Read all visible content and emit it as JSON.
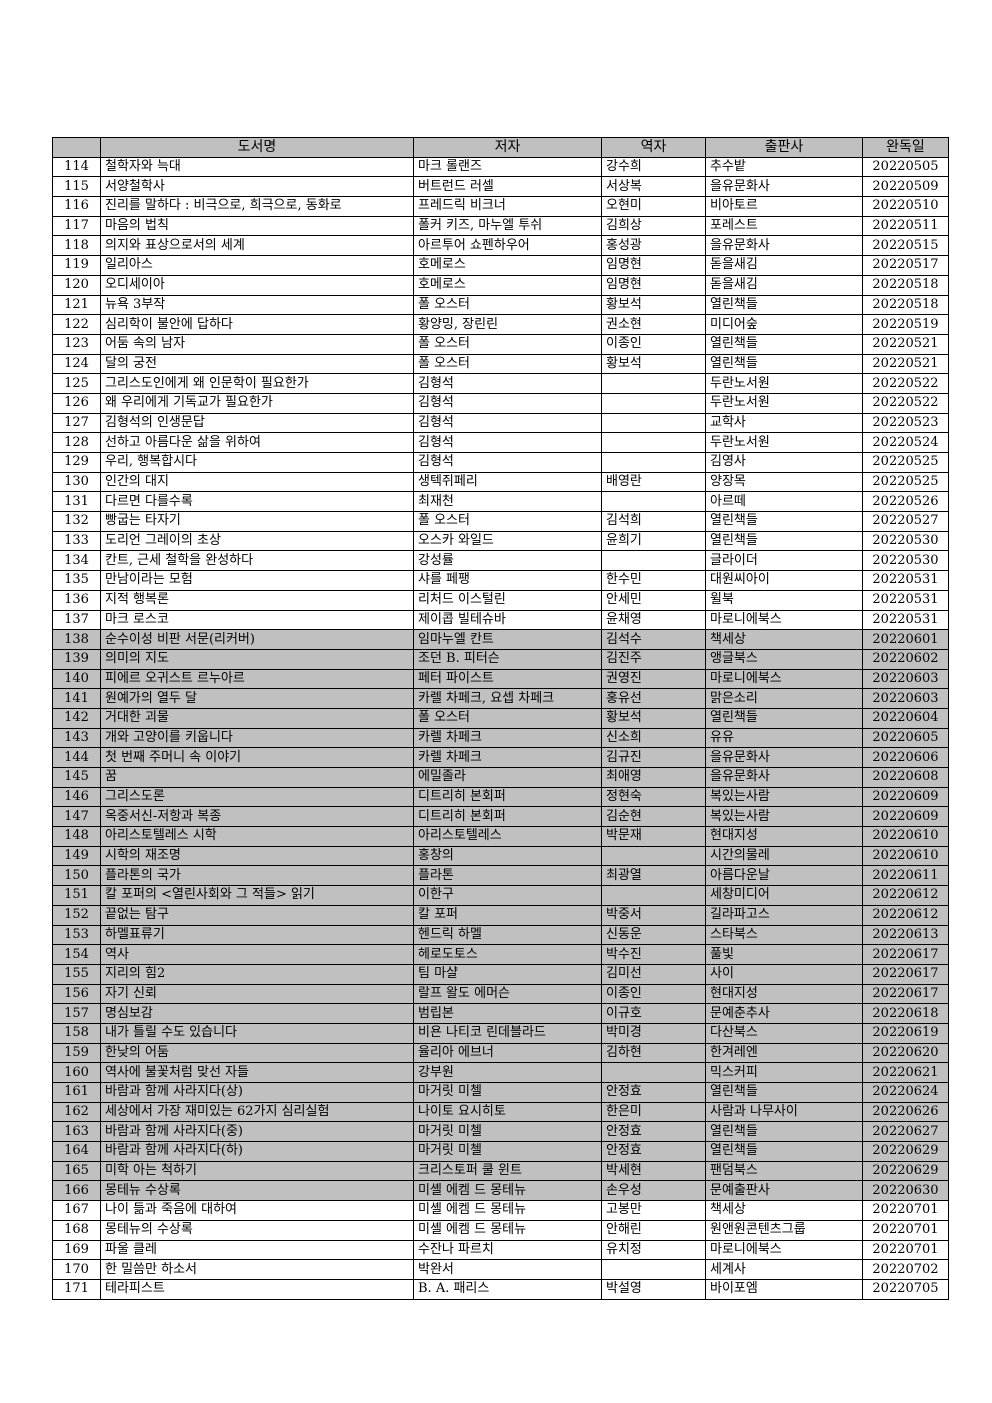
{
  "table": {
    "headers": [
      "",
      "도서명",
      "저자",
      "역자",
      "출판사",
      "완독일"
    ],
    "shade_color": "#c0c0c0",
    "rows": [
      {
        "no": "114",
        "title": "철학자와 늑대",
        "author": "마크 롤랜즈",
        "translator": "강수희",
        "publisher": "추수밭",
        "date": "20220505",
        "shaded": false
      },
      {
        "no": "115",
        "title": "서양철학사",
        "author": "버트런드 러셀",
        "translator": "서상복",
        "publisher": "을유문화사",
        "date": "20220509",
        "shaded": false
      },
      {
        "no": "116",
        "title": "진리를 말하다 : 비극으로, 희극으로, 동화로",
        "author": "프레드릭 비크너",
        "translator": "오현미",
        "publisher": "비아토르",
        "date": "20220510",
        "shaded": false
      },
      {
        "no": "117",
        "title": "마음의 법칙",
        "author": "폴커 키즈, 마누엘 투쉬",
        "translator": "김희상",
        "publisher": "포레스트",
        "date": "20220511",
        "shaded": false
      },
      {
        "no": "118",
        "title": "의지와 표상으로서의 세계",
        "author": "아르투어 쇼펜하우어",
        "translator": "홍성광",
        "publisher": "을유문화사",
        "date": "20220515",
        "shaded": false
      },
      {
        "no": "119",
        "title": "일리아스",
        "author": "호메로스",
        "translator": "임명현",
        "publisher": "돋을새김",
        "date": "20220517",
        "shaded": false
      },
      {
        "no": "120",
        "title": "오디세이아",
        "author": "호메로스",
        "translator": "임명현",
        "publisher": "돋을새김",
        "date": "20220518",
        "shaded": false
      },
      {
        "no": "121",
        "title": "뉴욕 3부작",
        "author": "폴 오스터",
        "translator": "황보석",
        "publisher": "열린책들",
        "date": "20220518",
        "shaded": false
      },
      {
        "no": "122",
        "title": "심리학이 불안에 답하다",
        "author": "황양밍, 장린린",
        "translator": "권소현",
        "publisher": "미디어숲",
        "date": "20220519",
        "shaded": false
      },
      {
        "no": "123",
        "title": "어둠 속의 남자",
        "author": "폴 오스터",
        "translator": "이종인",
        "publisher": "열린책들",
        "date": "20220521",
        "shaded": false
      },
      {
        "no": "124",
        "title": "달의 궁전",
        "author": "폴 오스터",
        "translator": "황보석",
        "publisher": "열린책들",
        "date": "20220521",
        "shaded": false
      },
      {
        "no": "125",
        "title": "그리스도인에게 왜 인문학이 필요한가",
        "author": "김형석",
        "translator": "",
        "publisher": "두란노서원",
        "date": "20220522",
        "shaded": false
      },
      {
        "no": "126",
        "title": "왜 우리에게 기독교가 필요한가",
        "author": "김형석",
        "translator": "",
        "publisher": "두란노서원",
        "date": "20220522",
        "shaded": false
      },
      {
        "no": "127",
        "title": "김형석의 인생문답",
        "author": "김형석",
        "translator": "",
        "publisher": "교학사",
        "date": "20220523",
        "shaded": false
      },
      {
        "no": "128",
        "title": "선하고 아름다운 삶을 위하여",
        "author": "김형석",
        "translator": "",
        "publisher": "두란노서원",
        "date": "20220524",
        "shaded": false
      },
      {
        "no": "129",
        "title": "우리, 행복합시다",
        "author": "김형석",
        "translator": "",
        "publisher": "김영사",
        "date": "20220525",
        "shaded": false
      },
      {
        "no": "130",
        "title": "인간의 대지",
        "author": "생텍쥐페리",
        "translator": "배영란",
        "publisher": "양장목",
        "date": "20220525",
        "shaded": false
      },
      {
        "no": "131",
        "title": "다르면 다를수록",
        "author": "최재천",
        "translator": "",
        "publisher": "아르떼",
        "date": "20220526",
        "shaded": false
      },
      {
        "no": "132",
        "title": "빵굽는 타자기",
        "author": "폴 오스터",
        "translator": "김석희",
        "publisher": "열린책들",
        "date": "20220527",
        "shaded": false
      },
      {
        "no": "133",
        "title": "도리언 그레이의 초상",
        "author": "오스카 와일드",
        "translator": "윤희기",
        "publisher": "열린책들",
        "date": "20220530",
        "shaded": false
      },
      {
        "no": "134",
        "title": "칸트, 근세 철학을 완성하다",
        "author": "강성률",
        "translator": "",
        "publisher": "글라이더",
        "date": "20220530",
        "shaded": false
      },
      {
        "no": "135",
        "title": "만남이라는 모험",
        "author": "샤를 페팽",
        "translator": "한수민",
        "publisher": "대원씨아이",
        "date": "20220531",
        "shaded": false
      },
      {
        "no": "136",
        "title": "지적 행복론",
        "author": "리처드 이스털린",
        "translator": "안세민",
        "publisher": "윌북",
        "date": "20220531",
        "shaded": false
      },
      {
        "no": "137",
        "title": "마크 로스코",
        "author": "제이콥 빌테슈바",
        "translator": "윤채영",
        "publisher": "마로니에북스",
        "date": "20220531",
        "shaded": false
      },
      {
        "no": "138",
        "title": "순수이성 비판 서문(리커버)",
        "author": "임마누엘 칸트",
        "translator": "김석수",
        "publisher": "책세상",
        "date": "20220601",
        "shaded": true
      },
      {
        "no": "139",
        "title": "의미의 지도",
        "author": "조던 B. 피터슨",
        "translator": "김진주",
        "publisher": "앵글북스",
        "date": "20220602",
        "shaded": true
      },
      {
        "no": "140",
        "title": "피에르 오귀스트 르누아르",
        "author": "페터 파이스트",
        "translator": "권영진",
        "publisher": "마로니에북스",
        "date": "20220603",
        "shaded": true
      },
      {
        "no": "141",
        "title": "원예가의 열두 달",
        "author": "카렐 차페크, 요셉 차페크",
        "translator": "홍유선",
        "publisher": "맑은소리",
        "date": "20220603",
        "shaded": true
      },
      {
        "no": "142",
        "title": "거대한 괴물",
        "author": "폴 오스터",
        "translator": "황보석",
        "publisher": "열린책들",
        "date": "20220604",
        "shaded": true
      },
      {
        "no": "143",
        "title": "개와 고양이를 키웁니다",
        "author": "카렐 차페크",
        "translator": "신소희",
        "publisher": "유유",
        "date": "20220605",
        "shaded": true
      },
      {
        "no": "144",
        "title": "첫 번째 주머니 속 이야기",
        "author": "카렐 차페크",
        "translator": "김규진",
        "publisher": "을유문화사",
        "date": "20220606",
        "shaded": true
      },
      {
        "no": "145",
        "title": "꿈",
        "author": "에밀졸라",
        "translator": "최애영",
        "publisher": "을유문화사",
        "date": "20220608",
        "shaded": true
      },
      {
        "no": "146",
        "title": "그리스도론",
        "author": "디트리히 본회퍼",
        "translator": "정현숙",
        "publisher": "복있는사람",
        "date": "20220609",
        "shaded": true
      },
      {
        "no": "147",
        "title": "옥중서신-저항과 복종",
        "author": "디트리히 본회퍼",
        "translator": "김순현",
        "publisher": "복있는사람",
        "date": "20220609",
        "shaded": true
      },
      {
        "no": "148",
        "title": "아리스토텔레스 시학",
        "author": "아리스토텔레스",
        "translator": "박문재",
        "publisher": "현대지성",
        "date": "20220610",
        "shaded": true
      },
      {
        "no": "149",
        "title": "시학의 재조명",
        "author": "홍창의",
        "translator": "",
        "publisher": "시간의물레",
        "date": "20220610",
        "shaded": true
      },
      {
        "no": "150",
        "title": "플라톤의 국가",
        "author": "플라톤",
        "translator": "최광열",
        "publisher": "아름다운날",
        "date": "20220611",
        "shaded": true
      },
      {
        "no": "151",
        "title": "칼 포퍼의 <열린사회와 그 적들> 읽기",
        "author": "이한구",
        "translator": "",
        "publisher": "세창미디어",
        "date": "20220612",
        "shaded": true
      },
      {
        "no": "152",
        "title": "끝없는 탐구",
        "author": "칼 포퍼",
        "translator": "박중서",
        "publisher": "길라파고스",
        "date": "20220612",
        "shaded": true
      },
      {
        "no": "153",
        "title": "하멜표류기",
        "author": "헨드릭 하멜",
        "translator": "신동운",
        "publisher": "스타북스",
        "date": "20220613",
        "shaded": true
      },
      {
        "no": "154",
        "title": "역사",
        "author": "헤로도토스",
        "translator": "박수진",
        "publisher": "풀빛",
        "date": "20220617",
        "shaded": true
      },
      {
        "no": "155",
        "title": "지리의 힘2",
        "author": "팀 마샬",
        "translator": "김미선",
        "publisher": "사이",
        "date": "20220617",
        "shaded": true
      },
      {
        "no": "156",
        "title": "자기 신뢰",
        "author": "랄프 왈도 에머슨",
        "translator": "이종인",
        "publisher": "현대지성",
        "date": "20220617",
        "shaded": true
      },
      {
        "no": "157",
        "title": "명심보감",
        "author": "범립본",
        "translator": "이규호",
        "publisher": "문예춘추사",
        "date": "20220618",
        "shaded": true
      },
      {
        "no": "158",
        "title": "내가 틀릴 수도 있습니다",
        "author": "비욘 나티코 린데블라드",
        "translator": "박미경",
        "publisher": "다산북스",
        "date": "20220619",
        "shaded": true
      },
      {
        "no": "159",
        "title": "한낮의 어둠",
        "author": "율리아 에브너",
        "translator": "김하현",
        "publisher": "한겨레엔",
        "date": "20220620",
        "shaded": true
      },
      {
        "no": "160",
        "title": "역사에 불꽃처럼 맞선 자들",
        "author": "강부원",
        "translator": "",
        "publisher": "믹스커피",
        "date": "20220621",
        "shaded": true
      },
      {
        "no": "161",
        "title": "바람과 함께 사라지다(상)",
        "author": "마거릿 미첼",
        "translator": "안정효",
        "publisher": "열린책들",
        "date": "20220624",
        "shaded": true
      },
      {
        "no": "162",
        "title": "세상에서 가장 재미있는 62가지 심리실험",
        "author": "나이토 요시히토",
        "translator": "한은미",
        "publisher": "사람과 나무사이",
        "date": "20220626",
        "shaded": true
      },
      {
        "no": "163",
        "title": "바람과 함께 사라지다(중)",
        "author": "마거릿 미첼",
        "translator": "안정효",
        "publisher": "열린책들",
        "date": "20220627",
        "shaded": true
      },
      {
        "no": "164",
        "title": "바람과 함께 사라지다(하)",
        "author": "마거릿 미첼",
        "translator": "안정효",
        "publisher": "열린책들",
        "date": "20220629",
        "shaded": true
      },
      {
        "no": "165",
        "title": "미학 아는 척하기",
        "author": "크리스토퍼 쿨 윈트",
        "translator": "박세현",
        "publisher": "팬덤북스",
        "date": "20220629",
        "shaded": true
      },
      {
        "no": "166",
        "title": "몽테뉴 수상록",
        "author": "미셸 에켐 드 몽테뉴",
        "translator": "손우성",
        "publisher": "문예출판사",
        "date": "20220630",
        "shaded": true
      },
      {
        "no": "167",
        "title": "나이 듦과 죽음에 대하여",
        "author": "미셸 에켐 드 몽테뉴",
        "translator": "고봉만",
        "publisher": "책세상",
        "date": "20220701",
        "shaded": false
      },
      {
        "no": "168",
        "title": "몽테뉴의 수상록",
        "author": "미셸 에켐 드 몽테뉴",
        "translator": "안해린",
        "publisher": "원앤원콘텐츠그룹",
        "date": "20220701",
        "shaded": false
      },
      {
        "no": "169",
        "title": "파울 클레",
        "author": "수잔나 파르치",
        "translator": "유치정",
        "publisher": "마로니에북스",
        "date": "20220701",
        "shaded": false
      },
      {
        "no": "170",
        "title": "한 밀씀만 하소서",
        "author": "박완서",
        "translator": "",
        "publisher": "세계사",
        "date": "20220702",
        "shaded": false
      },
      {
        "no": "171",
        "title": "테라피스트",
        "author": "B. A. 패리스",
        "translator": "박설영",
        "publisher": "바이포엠",
        "date": "20220705",
        "shaded": false
      }
    ]
  }
}
